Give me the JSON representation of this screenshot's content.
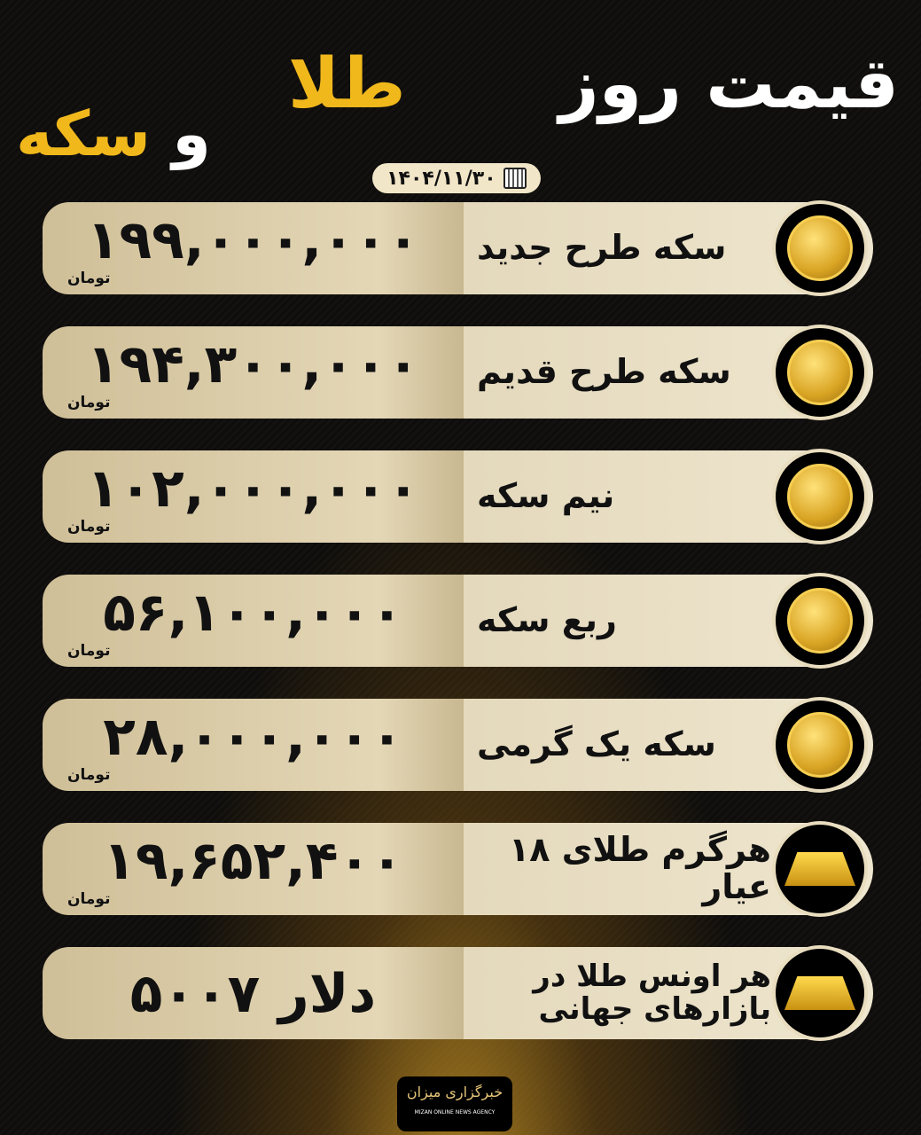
{
  "title": {
    "line1": "قیمت روز",
    "gold1": "طلا",
    "conj": "و",
    "gold2": "سکه"
  },
  "date": "۱۴۰۴/۱۱/۳۰",
  "items": [
    {
      "label": "سکه طرح جدید",
      "price": "۱۹۹,۰۰۰,۰۰۰",
      "unit": "تومان",
      "icon": "coin-new-icon"
    },
    {
      "label": "سکه طرح قدیم",
      "price": "۱۹۴,۳۰۰,۰۰۰",
      "unit": "تومان",
      "icon": "coin-old-icon"
    },
    {
      "label": "نیم سکه",
      "price": "۱۰۲,۰۰۰,۰۰۰",
      "unit": "تومان",
      "icon": "half-coin-icon"
    },
    {
      "label": "ربع سکه",
      "price": "۵۶,۱۰۰,۰۰۰",
      "unit": "تومان",
      "icon": "quarter-coin-icon"
    },
    {
      "label": "سکه یک گرمی",
      "price": "۲۸,۰۰۰,۰۰۰",
      "unit": "تومان",
      "icon": "gram-coin-icon"
    },
    {
      "label": "هرگرم طلای ۱۸ عیار",
      "price": "۱۹,۶۵۲,۴۰۰",
      "unit": "تومان",
      "icon": "gold-bar-icon"
    },
    {
      "label": "هر اونس طلا در بازارهای جهانی",
      "price": "۵۰۰۷ دلار",
      "unit": "",
      "icon": "gold-bars-coins-icon"
    }
  ],
  "footer": {
    "logo_fa": "خبرگزاری میزان",
    "logo_en": "MIZAN ONLINE NEWS AGENCY"
  },
  "colors": {
    "gold": "#f1b81c",
    "cream": "#efe6cf",
    "background": "#0b0a08"
  }
}
